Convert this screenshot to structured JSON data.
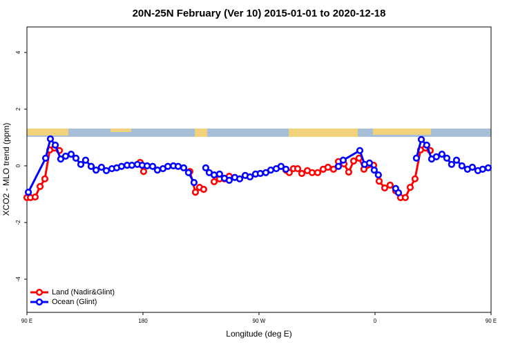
{
  "chart_data": {
    "type": "line",
    "title": "20N-25N February (Ver 10)   2015-01-01 to 2020-12-18",
    "x_label": "Longitude (deg E)",
    "y_label": "XCO2 - MLO trend (ppm)",
    "xlim": [
      90,
      450
    ],
    "ylim": [
      -5.17,
      4.9
    ],
    "xticks": [
      {
        "value": 90,
        "label": "90 E"
      },
      {
        "value": 180,
        "label": "180"
      },
      {
        "value": 270,
        "label": "90 W"
      },
      {
        "value": 360,
        "label": "0"
      },
      {
        "value": 450,
        "label": "90 E"
      }
    ],
    "yticks": [
      -4,
      -2,
      0,
      2,
      4
    ],
    "legend": "bottom-left",
    "series": [
      {
        "name": "Land (Nadir&Glint)",
        "color": "#ff0000",
        "x": [
          90.0,
          92.7,
          96.4,
          100.2,
          103.9,
          107.7,
          111.4,
          115.2,
          150,
          177.8,
          180.5,
          198,
          216.4,
          220.7,
          223.9,
          227.1,
          229,
          235.2,
          239.4,
          243.2,
          246.9,
          270,
          290.9,
          293.5,
          296.7,
          300.0,
          303.2,
          307.5,
          311.2,
          315.5,
          319.8,
          323.5,
          327.8,
          331.6,
          335.9,
          339.6,
          343.4,
          347.6,
          351.4,
          358.9,
          363.2,
          367.5,
          371.7,
          376.0,
          379.8,
          383.5,
          387.3,
          391.0,
          395.3,
          399.1,
          402.8
        ],
        "values": [
          -1.12,
          -1.12,
          -1.1,
          -0.73,
          -0.46,
          0.56,
          0.63,
          0.54,
          null,
          0.12,
          -0.2,
          null,
          -0.2,
          -0.93,
          -0.76,
          -0.83,
          null,
          -0.56,
          -0.46,
          -0.46,
          -0.37,
          null,
          -0.15,
          -0.24,
          -0.1,
          -0.1,
          -0.27,
          -0.17,
          -0.24,
          -0.24,
          -0.12,
          -0.05,
          -0.12,
          0.15,
          0.07,
          -0.22,
          0.17,
          0.27,
          -0.12,
          0.02,
          -0.54,
          -0.78,
          -0.68,
          -0.88,
          -1.12,
          -1.12,
          -0.76,
          -0.46,
          0.56,
          0.63,
          0.54
        ]
      },
      {
        "name": "Ocean (Glint)",
        "color": "#0000ff",
        "x": [
          91.1,
          104.5,
          108.2,
          112.0,
          116.2,
          120.0,
          124.3,
          128.0,
          131.8,
          135.5,
          139.8,
          143.6,
          147.8,
          151.6,
          155.9,
          159.6,
          163.4,
          167.7,
          171.4,
          175.7,
          179.4,
          183.2,
          187.5,
          191.2,
          195.5,
          199.3,
          203.6,
          207.3,
          211.6,
          215.3,
          219.6,
          224,
          228.7,
          231.4,
          235.2,
          239.4,
          243.2,
          246.9,
          251.2,
          255.0,
          259.3,
          263.0,
          267.3,
          271.0,
          275.3,
          279.1,
          283.4,
          287.1,
          290.9,
          310,
          331.6,
          335.3,
          348.2,
          351.9,
          355.7,
          359.4,
          362.6,
          370,
          376.0,
          378.2,
          385,
          392.1,
          395.9,
          400.1,
          403.9,
          407.6,
          411.9,
          415.7,
          419.4,
          423.2,
          427.4,
          431.7,
          435.5,
          439.8,
          443.5,
          447.8
        ],
        "values": [
          -0.93,
          0.27,
          0.95,
          0.73,
          0.24,
          0.34,
          0.41,
          0.27,
          0.05,
          0.2,
          -0.02,
          -0.15,
          -0.05,
          -0.17,
          -0.1,
          -0.07,
          -0.02,
          0.02,
          0.02,
          0.05,
          0.02,
          0,
          -0.02,
          -0.15,
          -0.1,
          -0.02,
          0,
          -0.02,
          -0.07,
          -0.24,
          -0.59,
          null,
          -0.07,
          -0.24,
          -0.32,
          -0.29,
          -0.44,
          -0.51,
          -0.41,
          -0.46,
          -0.34,
          -0.39,
          -0.29,
          -0.27,
          -0.24,
          -0.15,
          -0.1,
          -0.02,
          -0.12,
          null,
          -0.02,
          0.2,
          0.54,
          0.05,
          0.1,
          -0.15,
          -0.32,
          null,
          -0.8,
          -0.95,
          null,
          0.27,
          0.93,
          0.73,
          0.24,
          0.32,
          0.41,
          0.27,
          0.05,
          0.2,
          0,
          -0.12,
          -0.05,
          -0.17,
          -0.12,
          -0.07
        ]
      }
    ]
  }
}
